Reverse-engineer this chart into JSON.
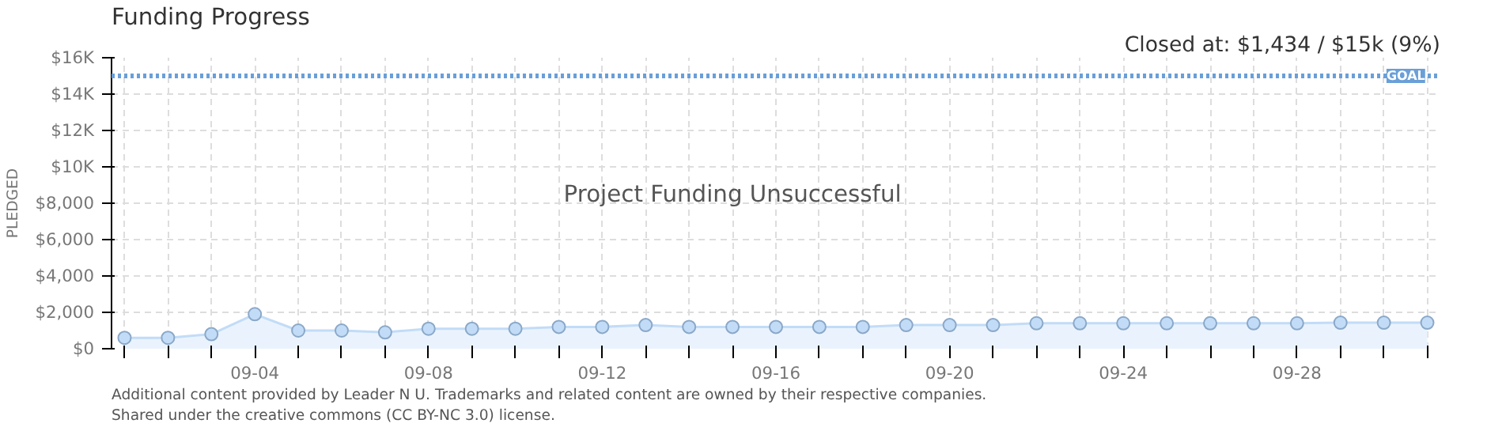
{
  "chart_data": {
    "type": "area",
    "title": "Funding Progress",
    "ylabel": "PLEDGED",
    "categories": [
      null,
      null,
      null,
      "09-04",
      null,
      null,
      null,
      "09-08",
      null,
      null,
      null,
      "09-12",
      null,
      null,
      null,
      "09-16",
      null,
      null,
      null,
      "09-20",
      null,
      null,
      null,
      "09-24",
      null,
      null,
      null,
      "09-28",
      null,
      null,
      null
    ],
    "series": [
      {
        "color": "#c2dcf7",
        "values": [
          600,
          600,
          800,
          1900,
          1000,
          1000,
          900,
          1100,
          1100,
          1100,
          1200,
          1200,
          1300,
          1200,
          1200,
          1200,
          1200,
          1200,
          1300,
          1300,
          1300,
          1400,
          1400,
          1400,
          1400,
          1400,
          1400,
          1400,
          1434,
          1434,
          1434
        ]
      }
    ],
    "ylim": [
      0,
      16000
    ],
    "yticks": [
      {
        "value": 0,
        "label": "$0"
      },
      {
        "value": 2000,
        "label": "$2,000"
      },
      {
        "value": 4000,
        "label": "$4,000"
      },
      {
        "value": 6000,
        "label": "$6,000"
      },
      {
        "value": 8000,
        "label": "$8,000"
      },
      {
        "value": 10000,
        "label": "$10K"
      },
      {
        "value": 12000,
        "label": "$12K"
      },
      {
        "value": 14000,
        "label": "$14K"
      },
      {
        "value": 16000,
        "label": "$16K"
      }
    ],
    "ref_lines": [
      {
        "axis": "y",
        "value": 15000,
        "label": "GOAL",
        "color": "#6a9fd8",
        "line_style": "dotted"
      }
    ],
    "annotations": [
      "Closed at: $1,434 / $15k (9%)",
      "Project Funding Unsuccessful",
      "Additional content provided by Leader N U. Trademarks and related content are owned by their respective companies.",
      "Shared under the creative commons (CC BY-NC 3.0) license."
    ],
    "grid": true,
    "marker": "circle"
  }
}
